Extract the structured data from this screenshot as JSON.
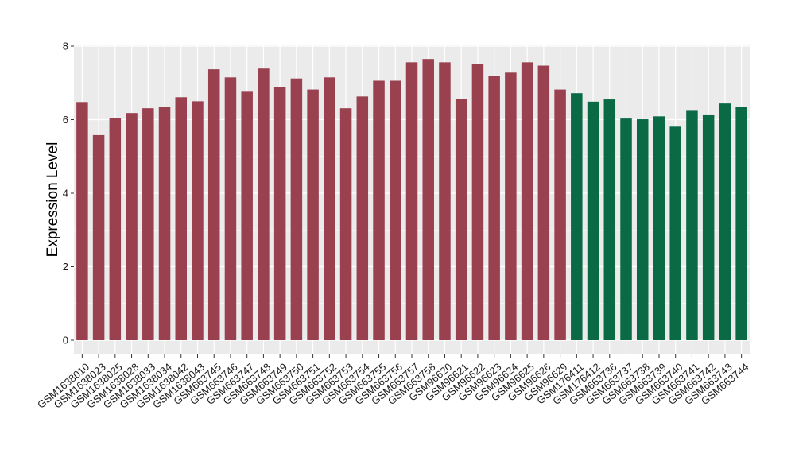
{
  "chart_data": {
    "type": "bar",
    "xlabel": "",
    "ylabel": "Expression Level",
    "ylim": [
      0,
      8
    ],
    "yticks": [
      0,
      2,
      4,
      6,
      8
    ],
    "grid": true,
    "legend": "none",
    "colors": {
      "group_a": "#9a4150",
      "group_b": "#0a6a45",
      "panel_bg": "#ebebeb",
      "grid": "#ffffff"
    },
    "categories": [
      "GSM1638010",
      "GSM1638023",
      "GSM1638025",
      "GSM1638028",
      "GSM1638033",
      "GSM1638034",
      "GSM1638042",
      "GSM1638043",
      "GSM663745",
      "GSM663746",
      "GSM663747",
      "GSM663748",
      "GSM663749",
      "GSM663750",
      "GSM663751",
      "GSM663752",
      "GSM663753",
      "GSM663754",
      "GSM663755",
      "GSM663756",
      "GSM663757",
      "GSM663758",
      "GSM96620",
      "GSM96621",
      "GSM96622",
      "GSM96623",
      "GSM96624",
      "GSM96625",
      "GSM96626",
      "GSM96629",
      "GSM176411",
      "GSM176412",
      "GSM663736",
      "GSM663737",
      "GSM663738",
      "GSM663739",
      "GSM663740",
      "GSM663741",
      "GSM663742",
      "GSM663743",
      "GSM663744"
    ],
    "values": [
      6.48,
      5.58,
      6.05,
      6.18,
      6.31,
      6.35,
      6.61,
      6.5,
      7.37,
      7.15,
      6.76,
      7.39,
      6.89,
      7.12,
      6.82,
      7.15,
      6.31,
      6.63,
      7.06,
      7.06,
      7.56,
      7.65,
      7.56,
      6.57,
      7.51,
      7.18,
      7.28,
      7.56,
      7.47,
      6.82,
      6.72,
      6.49,
      6.55,
      6.03,
      6.01,
      6.09,
      5.81,
      6.24,
      6.12,
      6.44,
      6.35
    ],
    "group": [
      "a",
      "a",
      "a",
      "a",
      "a",
      "a",
      "a",
      "a",
      "a",
      "a",
      "a",
      "a",
      "a",
      "a",
      "a",
      "a",
      "a",
      "a",
      "a",
      "a",
      "a",
      "a",
      "a",
      "a",
      "a",
      "a",
      "a",
      "a",
      "a",
      "a",
      "b",
      "b",
      "b",
      "b",
      "b",
      "b",
      "b",
      "b",
      "b",
      "b",
      "b"
    ]
  }
}
